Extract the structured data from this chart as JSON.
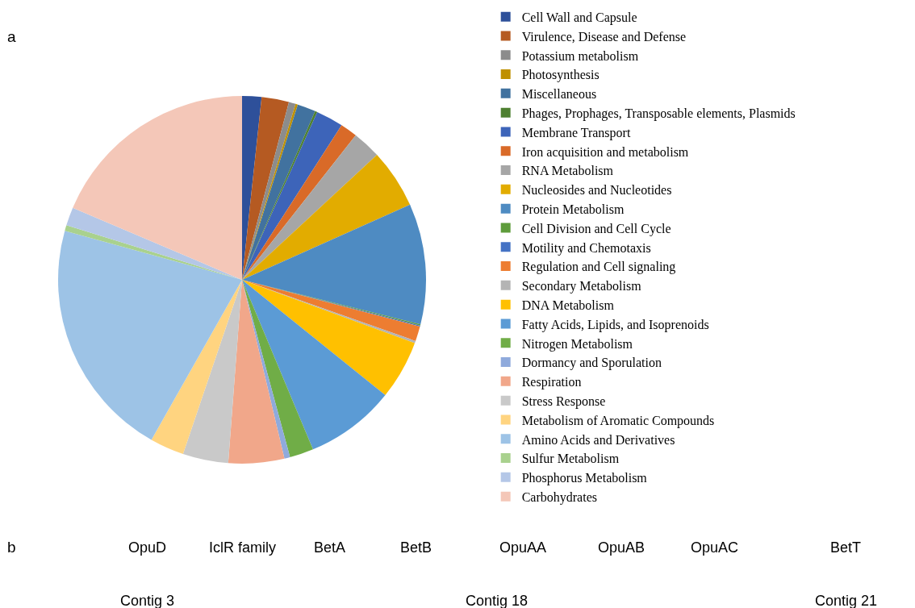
{
  "chart_data": {
    "type": "pie",
    "categories": [
      "Cell Wall and Capsule",
      "Virulence, Disease and Defense",
      "Potassium metabolism",
      "Photosynthesis",
      "Miscellaneous",
      "Phages, Prophages, Transposable elements, Plasmids",
      "Membrane Transport",
      "Iron acquisition and metabolism",
      "RNA Metabolism",
      "Nucleosides and Nucleotides",
      "Protein Metabolism",
      "Cell Division and Cell Cycle",
      "Motility and Chemotaxis",
      "Regulation and Cell signaling",
      "Secondary Metabolism",
      "DNA Metabolism",
      "Fatty Acids, Lipids, and Isoprenoids",
      "Nitrogen Metabolism",
      "Dormancy and Sporulation",
      "Respiration",
      "Stress Response",
      "Metabolism of Aromatic Compounds",
      "Amino Acids and Derivatives",
      "Sulfur Metabolism",
      "Phosphorus Metabolism",
      "Carbohydrates"
    ],
    "values": [
      1.7,
      2.4,
      0.6,
      0.2,
      1.6,
      0.2,
      2.4,
      1.5,
      2.5,
      5.2,
      10.6,
      0.1,
      0.1,
      1.3,
      0.2,
      5.2,
      7.9,
      2.1,
      0.5,
      4.9,
      4.0,
      3.0,
      21.1,
      0.5,
      1.6,
      18.6
    ],
    "colors": [
      "#2e509a",
      "#b55a22",
      "#8c8c8c",
      "#bf9000",
      "#41729f",
      "#4e8030",
      "#3d64b9",
      "#d96a28",
      "#a6a6a6",
      "#e2ac00",
      "#4e8bc2",
      "#5e9c3b",
      "#4472c4",
      "#ed7d31",
      "#b4b4b4",
      "#ffc000",
      "#5b9bd5",
      "#70ad47",
      "#8faadc",
      "#f1a78a",
      "#c9c9c9",
      "#ffd480",
      "#9dc3e6",
      "#a9d18e",
      "#b4c7e7",
      "#f4c7b8"
    ],
    "legend": "right",
    "annotations": [
      "a",
      "b",
      "OpuD",
      "IclR family",
      "BetA",
      "BetB",
      "OpuAA",
      "OpuAB",
      "OpuAC",
      "BetT",
      "Contig 3",
      "Contig 18",
      "Contig 21"
    ]
  }
}
